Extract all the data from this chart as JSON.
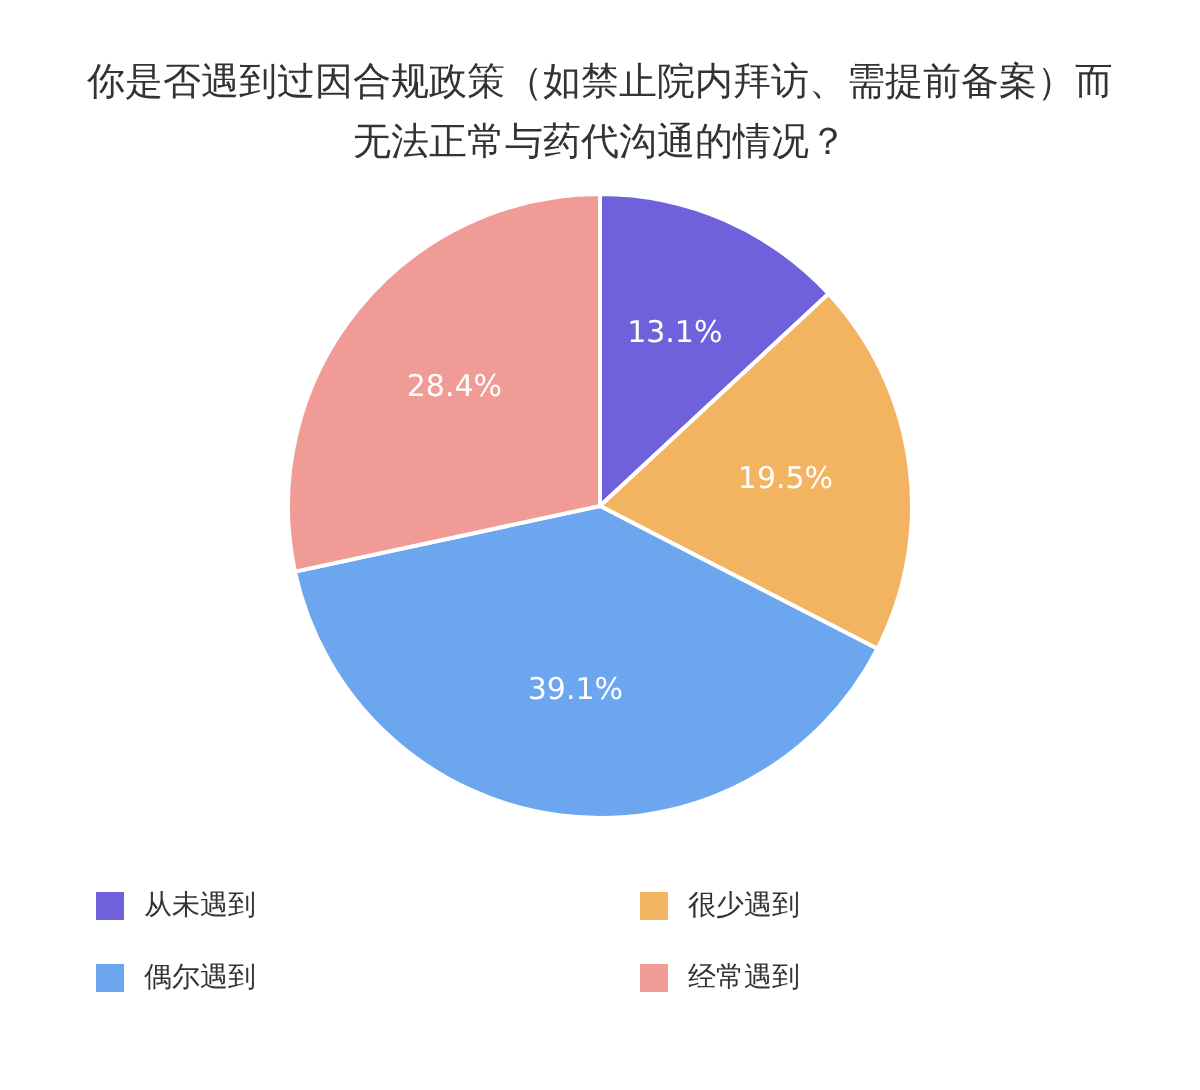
{
  "chart_data": {
    "type": "pie",
    "title": "你是否遇到过因合规政策（如禁止院内拜访、需提前备案）而无法正常与药代沟通的情况？",
    "categories": [
      "从未遇到",
      "很少遇到",
      "偶尔遇到",
      "经常遇到"
    ],
    "values": [
      13.1,
      19.5,
      39.1,
      28.4
    ],
    "colors": [
      "#6f61dc",
      "#f2b461",
      "#6ba6ef",
      "#f09b96"
    ],
    "value_labels": [
      "13.1%",
      "19.5%",
      "39.1%",
      "28.4%"
    ],
    "legend": "bottom"
  }
}
